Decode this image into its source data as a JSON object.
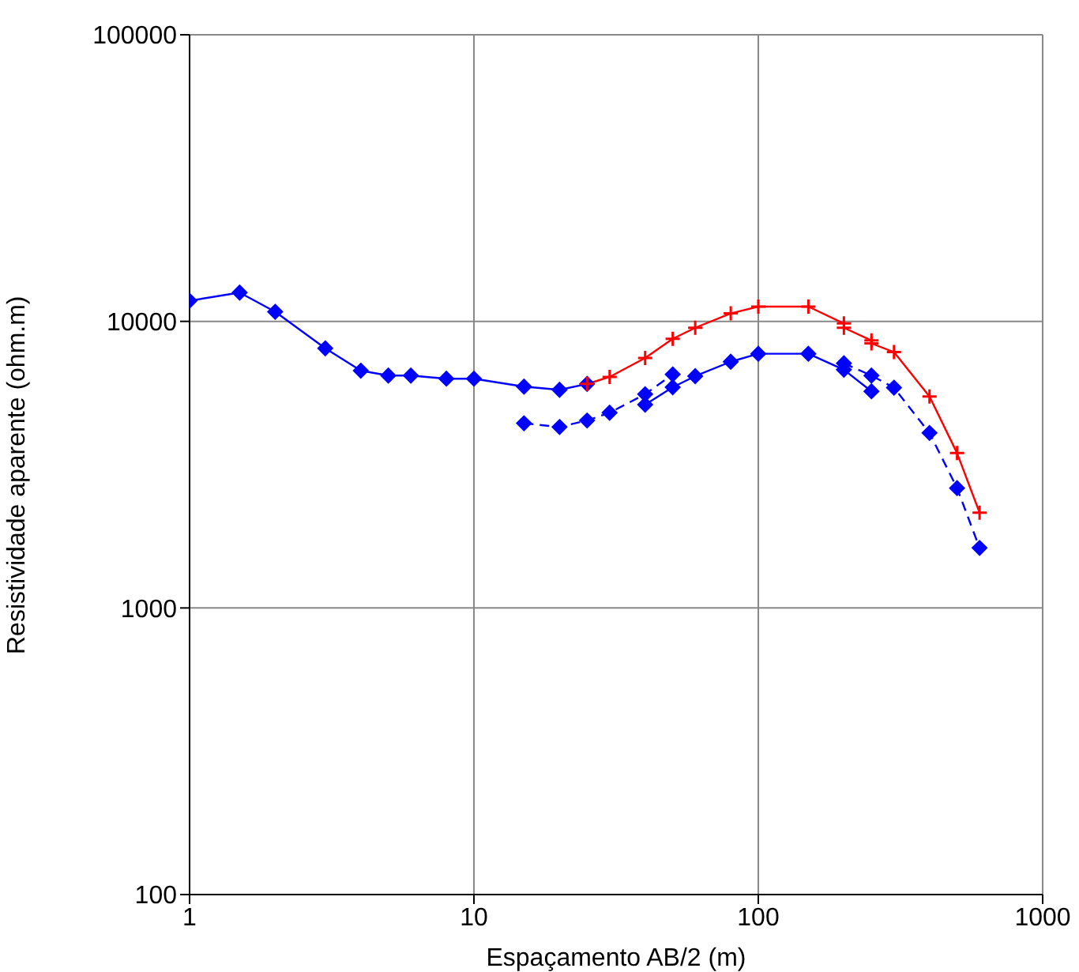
{
  "chart_data": {
    "type": "line",
    "xlabel": "Espaçamento AB/2 (m)",
    "ylabel": "Resistividade aparente (ohm.m)",
    "log": "xy",
    "grid": true,
    "xlim": [
      1,
      1000
    ],
    "xticks": [
      1,
      10,
      100,
      1000
    ],
    "ylim": [
      100,
      100000
    ],
    "yticks": [
      100,
      1000,
      10000,
      100000
    ],
    "series": [
      {
        "color": "#ff0000",
        "marker": "cross",
        "line_style": "solid",
        "x": [
          25,
          30,
          40,
          50,
          60,
          80,
          100,
          150,
          200,
          200,
          250,
          250,
          300,
          400,
          500,
          600
        ],
        "values": [
          6050,
          6400,
          7450,
          8690,
          9500,
          10660,
          11260,
          11260,
          9830,
          9500,
          8580,
          8380,
          7810,
          5470,
          3470,
          2150
        ]
      },
      {
        "color": "#0000ff",
        "marker": "diamond",
        "line_style": "solid",
        "x": [
          1,
          1.5,
          2,
          3,
          4,
          5,
          6,
          8,
          10,
          15,
          20,
          25,
          30,
          40,
          50,
          60,
          80,
          100,
          150,
          200,
          250
        ],
        "values": [
          11800,
          12600,
          10800,
          8050,
          6730,
          6470,
          6470,
          6310,
          6310,
          5920,
          5770,
          6050,
          null,
          5120,
          5890,
          6440,
          7230,
          7710,
          7710,
          6780,
          5700
        ]
      },
      {
        "color": "#0000ff",
        "marker": "diamond",
        "line_style": "dashed",
        "x": [
          15,
          20,
          25,
          30,
          40,
          50,
          100,
          200,
          250,
          300,
          400,
          500,
          600
        ],
        "values": [
          4410,
          4280,
          4510,
          4800,
          5570,
          6530,
          null,
          7140,
          6470,
          5870,
          4080,
          2620,
          1620
        ]
      }
    ]
  }
}
